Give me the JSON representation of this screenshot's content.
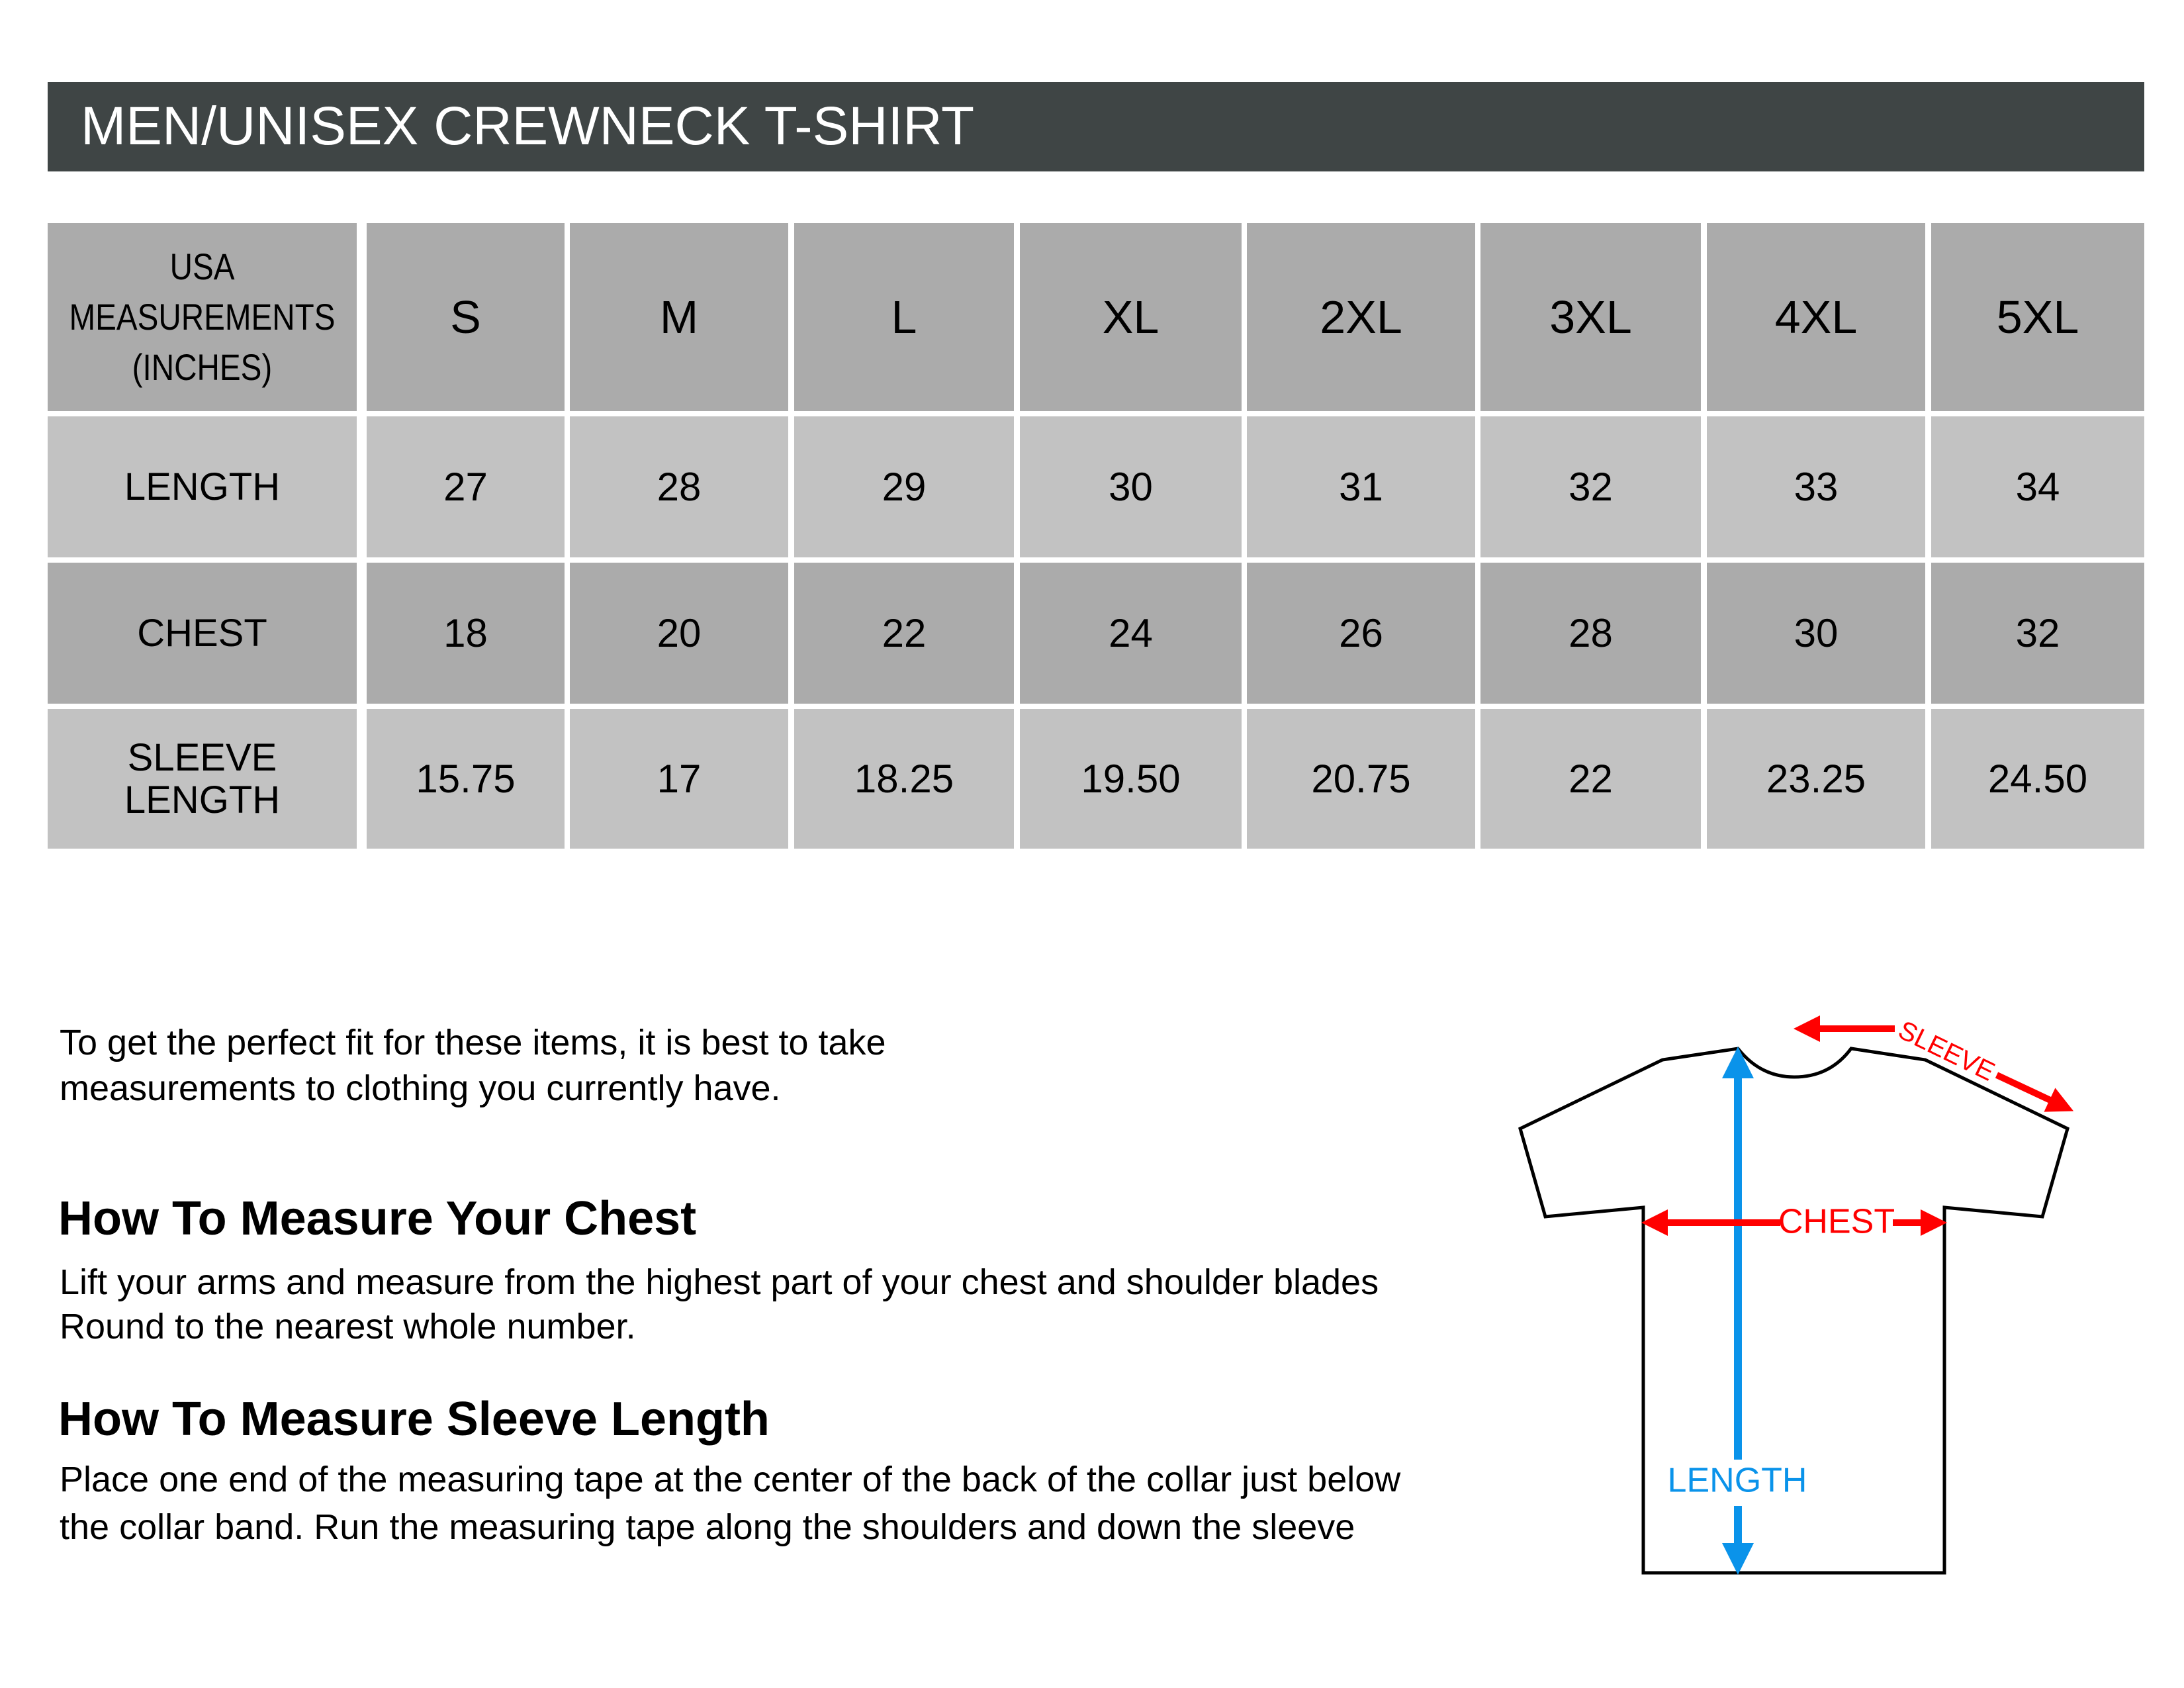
{
  "title": "MEN/UNISEX CREWNECK T-SHIRT",
  "table": {
    "corner_header": [
      "USA",
      "MEASUREMENTS",
      "(INCHES)"
    ],
    "sizes": [
      "S",
      "M",
      "L",
      "XL",
      "2XL",
      "3XL",
      "4XL",
      "5XL"
    ],
    "rows": [
      {
        "label": [
          "LENGTH"
        ],
        "values": [
          "27",
          "28",
          "29",
          "30",
          "31",
          "32",
          "33",
          "34"
        ]
      },
      {
        "label": [
          "CHEST"
        ],
        "values": [
          "18",
          "20",
          "22",
          "24",
          "26",
          "28",
          "30",
          "32"
        ]
      },
      {
        "label": [
          "SLEEVE",
          "LENGTH"
        ],
        "values": [
          "15.75",
          "17",
          "18.25",
          "19.50",
          "20.75",
          "22",
          "23.25",
          "24.50"
        ]
      }
    ]
  },
  "intro": [
    "To get the perfect fit for these items, it is best to take",
    "measurements to clothing you currently have."
  ],
  "chest_section": {
    "heading": "How To Measure Your Chest",
    "body": [
      "Lift your arms and measure from the highest part of your chest and shoulder blades",
      "Round to the nearest whole number."
    ]
  },
  "sleeve_section": {
    "heading": "How To Measure Sleeve Length",
    "body": [
      "Place one end of the measuring tape at the center of the back of the collar just below",
      "the collar band. Run the measuring tape along the shoulders and down the sleeve"
    ]
  },
  "diagram": {
    "sleeve_label": "SLEEVE",
    "chest_label": "CHEST",
    "length_label": "LENGTH",
    "colors": {
      "red": "#ff0000",
      "blue": "#0a93ea",
      "title_bar": "#3f4545",
      "cell_dark": "#ababab",
      "cell_light": "#c2c2c2"
    }
  }
}
